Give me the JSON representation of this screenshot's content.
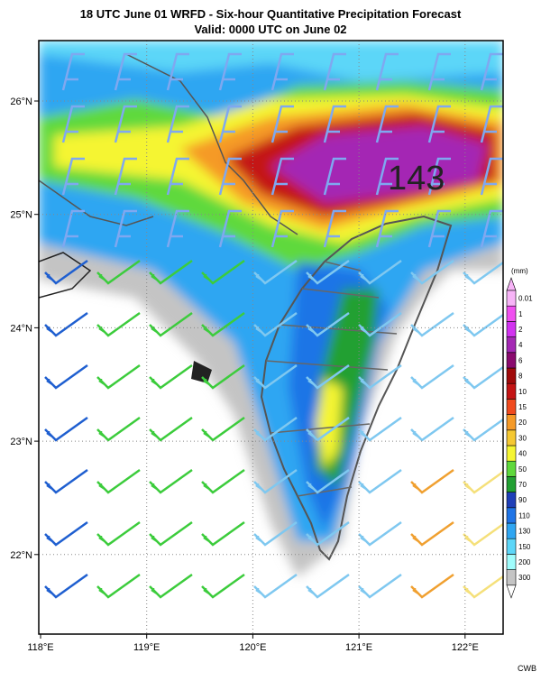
{
  "header": {
    "title": "18 UTC June 01 WRFD - Six-hour Quantitative Precipitation Forecast",
    "subtitle": "Valid: 0000 UTC on June 02"
  },
  "map": {
    "lat_labels": [
      "26°N",
      "25°N",
      "24°N",
      "23°N",
      "22°N"
    ],
    "lon_labels": [
      "118°E",
      "119°E",
      "120°E",
      "121°E",
      "122°E"
    ],
    "max_label": "143"
  },
  "legend": {
    "unit": "(mm)",
    "levels": [
      "0.01",
      "1",
      "2",
      "4",
      "6",
      "8",
      "10",
      "15",
      "20",
      "30",
      "40",
      "50",
      "70",
      "90",
      "110",
      "130",
      "150",
      "200",
      "300"
    ],
    "colors": [
      "#c4c4c4",
      "#9ffcfc",
      "#5cd6f8",
      "#2fa6f2",
      "#1f74e6",
      "#1f3fb8",
      "#22a033",
      "#5fd93c",
      "#f5f532",
      "#f5c832",
      "#f59a28",
      "#f04a1e",
      "#c41414",
      "#a00a0a",
      "#8a0a6e",
      "#a428b4",
      "#d232f0",
      "#f050f0",
      "#f7b4f7"
    ]
  },
  "footer": {
    "credit": "CWB"
  }
}
